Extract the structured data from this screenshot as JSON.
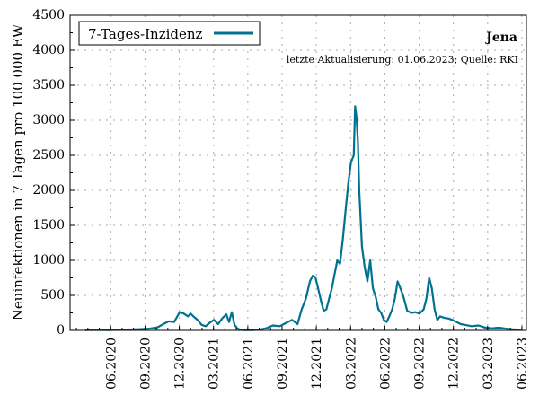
{
  "chart_data": {
    "type": "line",
    "title": "Jena",
    "subtitle": "letzte Aktualisierung: 01.06.2023; Quelle: RKI",
    "ylabel": "Neuinfektionen in 7 Tagen pro 100 000 EW",
    "xlabel": "",
    "ylim": [
      0,
      4500
    ],
    "xlim": [
      2020.12,
      2023.45
    ],
    "y_ticks": [
      0,
      500,
      1000,
      1500,
      2000,
      2500,
      3000,
      3500,
      4000,
      4500
    ],
    "x_ticks": [
      {
        "x": 2020.417,
        "label": "06.2020"
      },
      {
        "x": 2020.667,
        "label": "09.2020"
      },
      {
        "x": 2020.917,
        "label": "12.2020"
      },
      {
        "x": 2021.167,
        "label": "03.2021"
      },
      {
        "x": 2021.417,
        "label": "06.2021"
      },
      {
        "x": 2021.667,
        "label": "09.2021"
      },
      {
        "x": 2021.917,
        "label": "12.2021"
      },
      {
        "x": 2022.167,
        "label": "03.2022"
      },
      {
        "x": 2022.417,
        "label": "06.2022"
      },
      {
        "x": 2022.667,
        "label": "09.2022"
      },
      {
        "x": 2022.917,
        "label": "12.2022"
      },
      {
        "x": 2023.167,
        "label": "03.2023"
      },
      {
        "x": 2023.417,
        "label": "06.2023"
      }
    ],
    "grid": true,
    "legend_position": "top-left",
    "color": "#00718f",
    "series": [
      {
        "name": "7-Tages-Inzidenz",
        "x": [
          2020.23,
          2020.3,
          2020.4,
          2020.5,
          2020.6,
          2020.7,
          2020.76,
          2020.8,
          2020.84,
          2020.88,
          2020.92,
          2020.95,
          2020.98,
          2021.0,
          2021.02,
          2021.05,
          2021.08,
          2021.11,
          2021.14,
          2021.17,
          2021.2,
          2021.23,
          2021.26,
          2021.28,
          2021.3,
          2021.32,
          2021.34,
          2021.36,
          2021.38,
          2021.4,
          2021.45,
          2021.5,
          2021.55,
          2021.6,
          2021.65,
          2021.7,
          2021.74,
          2021.78,
          2021.81,
          2021.84,
          2021.87,
          2021.89,
          2021.91,
          2021.93,
          2021.95,
          2021.97,
          2021.99,
          2022.01,
          2022.03,
          2022.05,
          2022.07,
          2022.09,
          2022.11,
          2022.13,
          2022.15,
          2022.17,
          2022.19,
          2022.2,
          2022.21,
          2022.22,
          2022.23,
          2022.25,
          2022.27,
          2022.29,
          2022.31,
          2022.33,
          2022.35,
          2022.37,
          2022.39,
          2022.41,
          2022.43,
          2022.45,
          2022.47,
          2022.49,
          2022.51,
          2022.53,
          2022.55,
          2022.58,
          2022.61,
          2022.64,
          2022.67,
          2022.7,
          2022.72,
          2022.74,
          2022.76,
          2022.78,
          2022.8,
          2022.82,
          2022.85,
          2022.88,
          2022.91,
          2022.94,
          2022.97,
          2023.0,
          2023.05,
          2023.1,
          2023.15,
          2023.2,
          2023.25,
          2023.3,
          2023.35,
          2023.41
        ],
        "y": [
          5,
          8,
          5,
          10,
          15,
          25,
          45,
          90,
          130,
          120,
          260,
          240,
          200,
          240,
          200,
          150,
          80,
          60,
          110,
          150,
          90,
          170,
          230,
          120,
          260,
          80,
          30,
          10,
          5,
          5,
          5,
          10,
          30,
          70,
          60,
          110,
          150,
          90,
          300,
          450,
          700,
          780,
          760,
          600,
          430,
          280,
          300,
          450,
          600,
          800,
          1000,
          950,
          1300,
          1700,
          2100,
          2400,
          2500,
          3200,
          3050,
          2700,
          2000,
          1200,
          900,
          700,
          1000,
          600,
          480,
          300,
          250,
          150,
          120,
          200,
          300,
          450,
          700,
          600,
          500,
          280,
          250,
          260,
          240,
          300,
          450,
          750,
          600,
          300,
          150,
          200,
          180,
          170,
          150,
          120,
          90,
          80,
          60,
          70,
          40,
          30,
          40,
          25,
          15,
          10
        ]
      }
    ]
  }
}
